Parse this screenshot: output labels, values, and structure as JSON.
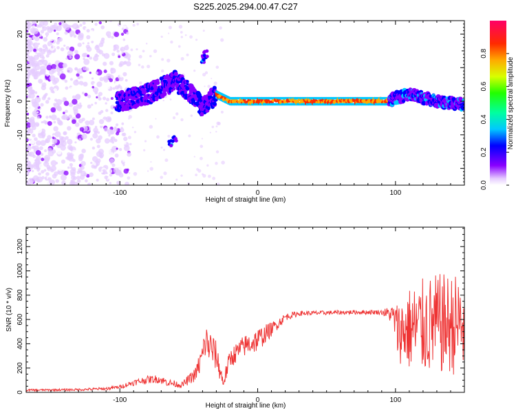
{
  "title": "S225.2025.294.00.47.C27",
  "chart_data": [
    {
      "type": "heatmap",
      "description": "spectrogram",
      "xlabel": "Height of straight line (km)",
      "ylabel": "Frequency (Hz)",
      "xlim": [
        -168,
        150
      ],
      "ylim": [
        -25,
        24
      ],
      "xticks": [
        -100,
        0,
        100
      ],
      "yticks": [
        -20,
        -10,
        0,
        10,
        20
      ],
      "colorbar": {
        "label": "Normalized spectral amplitude",
        "range": [
          0,
          1
        ],
        "ticks": [
          "0.0",
          "0.2",
          "0.4",
          "0.6",
          "0.8"
        ]
      },
      "ridge": {
        "x": [
          -100,
          -90,
          -80,
          -70,
          -60,
          -50,
          -40,
          -30,
          -20,
          0,
          20,
          50,
          80,
          95,
          100,
          110,
          120,
          130,
          150
        ],
        "freq": [
          0,
          1,
          2,
          4,
          6,
          3,
          -2,
          2,
          0,
          0,
          0,
          0,
          0,
          0,
          1,
          2,
          1,
          0,
          -1
        ]
      }
    },
    {
      "type": "line",
      "xlabel": "Height of straight line (km)",
      "ylabel": "SNR (10 * v/v)",
      "xlim": [
        -168,
        150
      ],
      "ylim": [
        0,
        1360
      ],
      "xticks": [
        -100,
        0,
        100
      ],
      "yticks": [
        0,
        200,
        400,
        600,
        800,
        1000,
        1200
      ],
      "series": [
        {
          "name": "SNR",
          "color": "#ee3333",
          "x": [
            -168,
            -150,
            -130,
            -110,
            -100,
            -90,
            -80,
            -72,
            -65,
            -55,
            -45,
            -40,
            -38,
            -35,
            -30,
            -25,
            -20,
            -10,
            0,
            10,
            20,
            30,
            50,
            70,
            90,
            98,
            102,
            110,
            120,
            130,
            140,
            150
          ],
          "y": [
            18,
            20,
            22,
            30,
            45,
            80,
            105,
            110,
            80,
            60,
            150,
            300,
            420,
            380,
            300,
            80,
            280,
            380,
            430,
            520,
            620,
            650,
            655,
            660,
            660,
            640,
            500,
            520,
            540,
            560,
            560,
            560
          ],
          "noise": [
            8,
            8,
            10,
            12,
            15,
            25,
            30,
            35,
            30,
            25,
            60,
            130,
            150,
            150,
            120,
            60,
            80,
            90,
            100,
            60,
            30,
            20,
            18,
            18,
            20,
            80,
            250,
            350,
            400,
            420,
            420,
            420
          ]
        }
      ]
    }
  ]
}
